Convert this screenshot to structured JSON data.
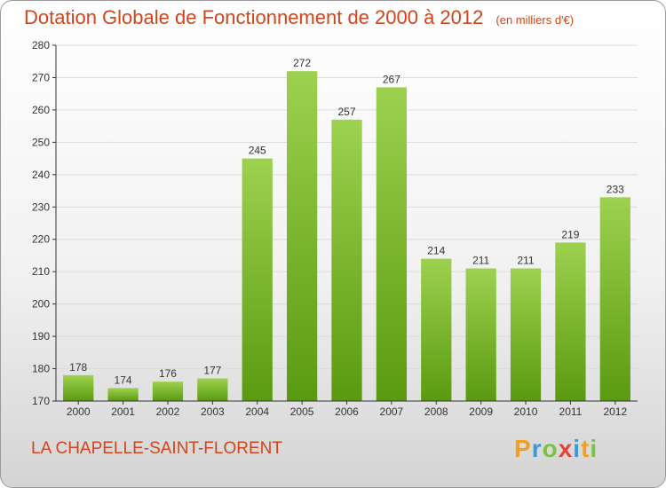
{
  "chart_data": {
    "type": "bar",
    "title": "Dotation Globale de Fonctionnement de 2000 à 2012",
    "subtitle": "(en milliers d'€)",
    "xlabel": "",
    "ylabel": "",
    "categories": [
      "2000",
      "2001",
      "2002",
      "2003",
      "2004",
      "2005",
      "2006",
      "2007",
      "2008",
      "2009",
      "2010",
      "2011",
      "2012"
    ],
    "values": [
      178,
      174,
      176,
      177,
      245,
      272,
      257,
      267,
      214,
      211,
      211,
      219,
      233
    ],
    "ylim": [
      170,
      280
    ],
    "yticks": [
      170,
      180,
      190,
      200,
      210,
      220,
      230,
      240,
      250,
      260,
      270,
      280
    ],
    "grid": true,
    "bar_color_top": "#9dd14f",
    "bar_color_bottom": "#5a9a10"
  },
  "footer": {
    "commune": "LA CHAPELLE-SAINT-FLORENT",
    "brand_letters": [
      "P",
      "r",
      "o",
      "x",
      "i",
      "t",
      "i"
    ],
    "brand_colors": [
      "#f0a020",
      "#3a9ad9",
      "#7cc242",
      "#e8413a",
      "#3a9ad9",
      "#f0a020",
      "#7cc242"
    ]
  },
  "colors": {
    "title": "#d0451b",
    "grid": "#dcdcdc",
    "axis": "#333333"
  }
}
